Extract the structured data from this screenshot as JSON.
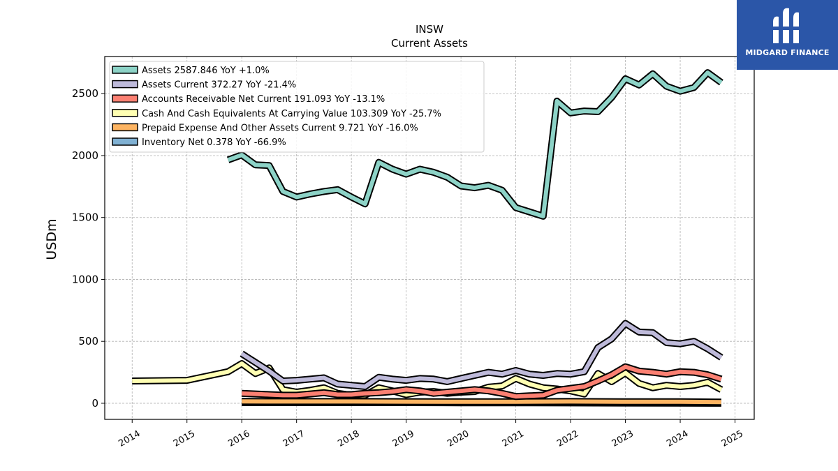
{
  "colors": {
    "Assets": "#8dd3c7",
    "Assets Current": "#bebada",
    "Accounts Receivable Net Current": "#fb8072",
    "Cash And Cash Equivalents At Carrying Value": "#ffffb3",
    "Prepaid Expense And Other Assets Current": "#fdb462",
    "Inventory Net": "#80b1d3"
  },
  "logo": {
    "text": "MIDGARD FINANCE",
    "icon": "midgard-logo-icon"
  },
  "chart_data": {
    "type": "line",
    "title": "INSW",
    "subtitle": "Current  Assets",
    "ylabel": "USDm",
    "xlim": [
      2013.5,
      2025.35
    ],
    "ylim": [
      -130,
      2800
    ],
    "yticks": [
      0,
      500,
      1000,
      1500,
      2000,
      2500
    ],
    "xticks": [
      2014,
      2015,
      2016,
      2017,
      2018,
      2019,
      2020,
      2021,
      2022,
      2023,
      2024,
      2025
    ],
    "grid": true,
    "legend_position": "upper-left",
    "series": [
      {
        "name": "Assets",
        "legend": "Assets  2587.846 YoY +1.0%",
        "x": [
          2015.75,
          2016.0,
          2016.25,
          2016.5,
          2016.75,
          2017.0,
          2017.25,
          2017.5,
          2017.75,
          2018.0,
          2018.25,
          2018.5,
          2018.75,
          2019.0,
          2019.25,
          2019.5,
          2019.75,
          2020.0,
          2020.25,
          2020.5,
          2020.75,
          2021.0,
          2021.25,
          2021.5,
          2021.75,
          2022.0,
          2022.25,
          2022.5,
          2022.75,
          2023.0,
          2023.25,
          2023.5,
          2023.75,
          2024.0,
          2024.25,
          2024.5,
          2024.75
        ],
        "y": [
          1965,
          2005,
          1925,
          1920,
          1710,
          1665,
          1690,
          1710,
          1725,
          1665,
          1610,
          1945,
          1890,
          1850,
          1890,
          1865,
          1825,
          1755,
          1740,
          1760,
          1720,
          1580,
          1545,
          1510,
          2440,
          2345,
          2360,
          2355,
          2470,
          2620,
          2570,
          2660,
          2560,
          2520,
          2550,
          2670,
          2590
        ]
      },
      {
        "name": "Assets Current",
        "legend": "Assets Current  372.27 YoY -21.4%",
        "x": [
          2016.0,
          2016.25,
          2016.5,
          2016.75,
          2017.0,
          2017.25,
          2017.5,
          2017.75,
          2018.0,
          2018.25,
          2018.5,
          2018.75,
          2019.0,
          2019.25,
          2019.5,
          2019.75,
          2020.0,
          2020.25,
          2020.5,
          2020.75,
          2021.0,
          2021.25,
          2021.5,
          2021.75,
          2022.0,
          2022.25,
          2022.5,
          2022.75,
          2023.0,
          2023.25,
          2023.5,
          2023.75,
          2024.0,
          2024.25,
          2024.5,
          2024.75
        ],
        "y": [
          400,
          330,
          260,
          180,
          185,
          195,
          205,
          155,
          145,
          135,
          210,
          195,
          185,
          200,
          195,
          175,
          200,
          225,
          250,
          235,
          265,
          235,
          225,
          240,
          235,
          255,
          450,
          520,
          645,
          575,
          570,
          490,
          480,
          500,
          440,
          370
        ]
      },
      {
        "name": "Accounts Receivable Net Current",
        "legend": "Accounts Receivable Net Current  191.093 YoY -13.1%",
        "x": [
          2016.0,
          2016.25,
          2016.5,
          2016.75,
          2017.0,
          2017.25,
          2017.5,
          2017.75,
          2018.0,
          2018.25,
          2018.5,
          2018.75,
          2019.0,
          2019.25,
          2019.5,
          2019.75,
          2020.0,
          2020.25,
          2020.5,
          2020.75,
          2021.0,
          2021.25,
          2021.5,
          2021.75,
          2022.0,
          2022.25,
          2022.5,
          2022.75,
          2023.0,
          2023.25,
          2023.5,
          2023.75,
          2024.0,
          2024.25,
          2024.5,
          2024.75
        ],
        "y": [
          80,
          75,
          70,
          65,
          65,
          75,
          85,
          70,
          70,
          80,
          85,
          95,
          110,
          100,
          80,
          90,
          100,
          110,
          100,
          80,
          55,
          60,
          65,
          105,
          120,
          135,
          180,
          230,
          295,
          260,
          250,
          235,
          255,
          250,
          230,
          195
        ]
      },
      {
        "name": "Cash And Cash Equivalents At Carrying Value",
        "legend": "Cash And Cash Equivalents At Carrying Value  103.309 YoY -25.7%",
        "x": [
          2014.0,
          2015.0,
          2015.75,
          2016.0,
          2016.25,
          2016.5,
          2016.75,
          2017.0,
          2017.25,
          2017.5,
          2017.75,
          2018.0,
          2018.25,
          2018.5,
          2018.75,
          2019.0,
          2019.25,
          2019.5,
          2019.75,
          2020.0,
          2020.25,
          2020.5,
          2020.75,
          2021.0,
          2021.25,
          2021.5,
          2021.75,
          2022.0,
          2022.25,
          2022.5,
          2022.75,
          2023.0,
          2023.25,
          2023.5,
          2023.75,
          2024.0,
          2024.25,
          2024.5,
          2024.75
        ],
        "y": [
          180,
          185,
          255,
          320,
          240,
          285,
          110,
          90,
          105,
          125,
          80,
          65,
          65,
          125,
          100,
          70,
          90,
          95,
          80,
          90,
          95,
          130,
          140,
          200,
          155,
          125,
          115,
          100,
          75,
          240,
          175,
          245,
          160,
          125,
          145,
          135,
          145,
          170,
          110
        ]
      },
      {
        "name": "Prepaid Expense And Other Assets Current",
        "legend": "Prepaid Expense And Other Assets Current  9.721 YoY -16.0%",
        "x": [
          2016.0,
          2017.0,
          2018.0,
          2019.0,
          2020.0,
          2021.0,
          2022.0,
          2023.0,
          2024.0,
          2024.75
        ],
        "y": [
          15,
          14,
          14,
          13,
          12,
          12,
          14,
          12,
          12,
          10
        ]
      },
      {
        "name": "Inventory Net",
        "legend": "Inventory Net  0.378 YoY -66.9%",
        "x": [
          2016.0,
          2017.0,
          2018.0,
          2019.0,
          2020.0,
          2021.0,
          2022.0,
          2023.0,
          2024.0,
          2024.75
        ],
        "y": [
          5,
          5,
          5,
          5,
          4,
          4,
          3,
          2,
          1,
          0.4
        ]
      }
    ]
  }
}
